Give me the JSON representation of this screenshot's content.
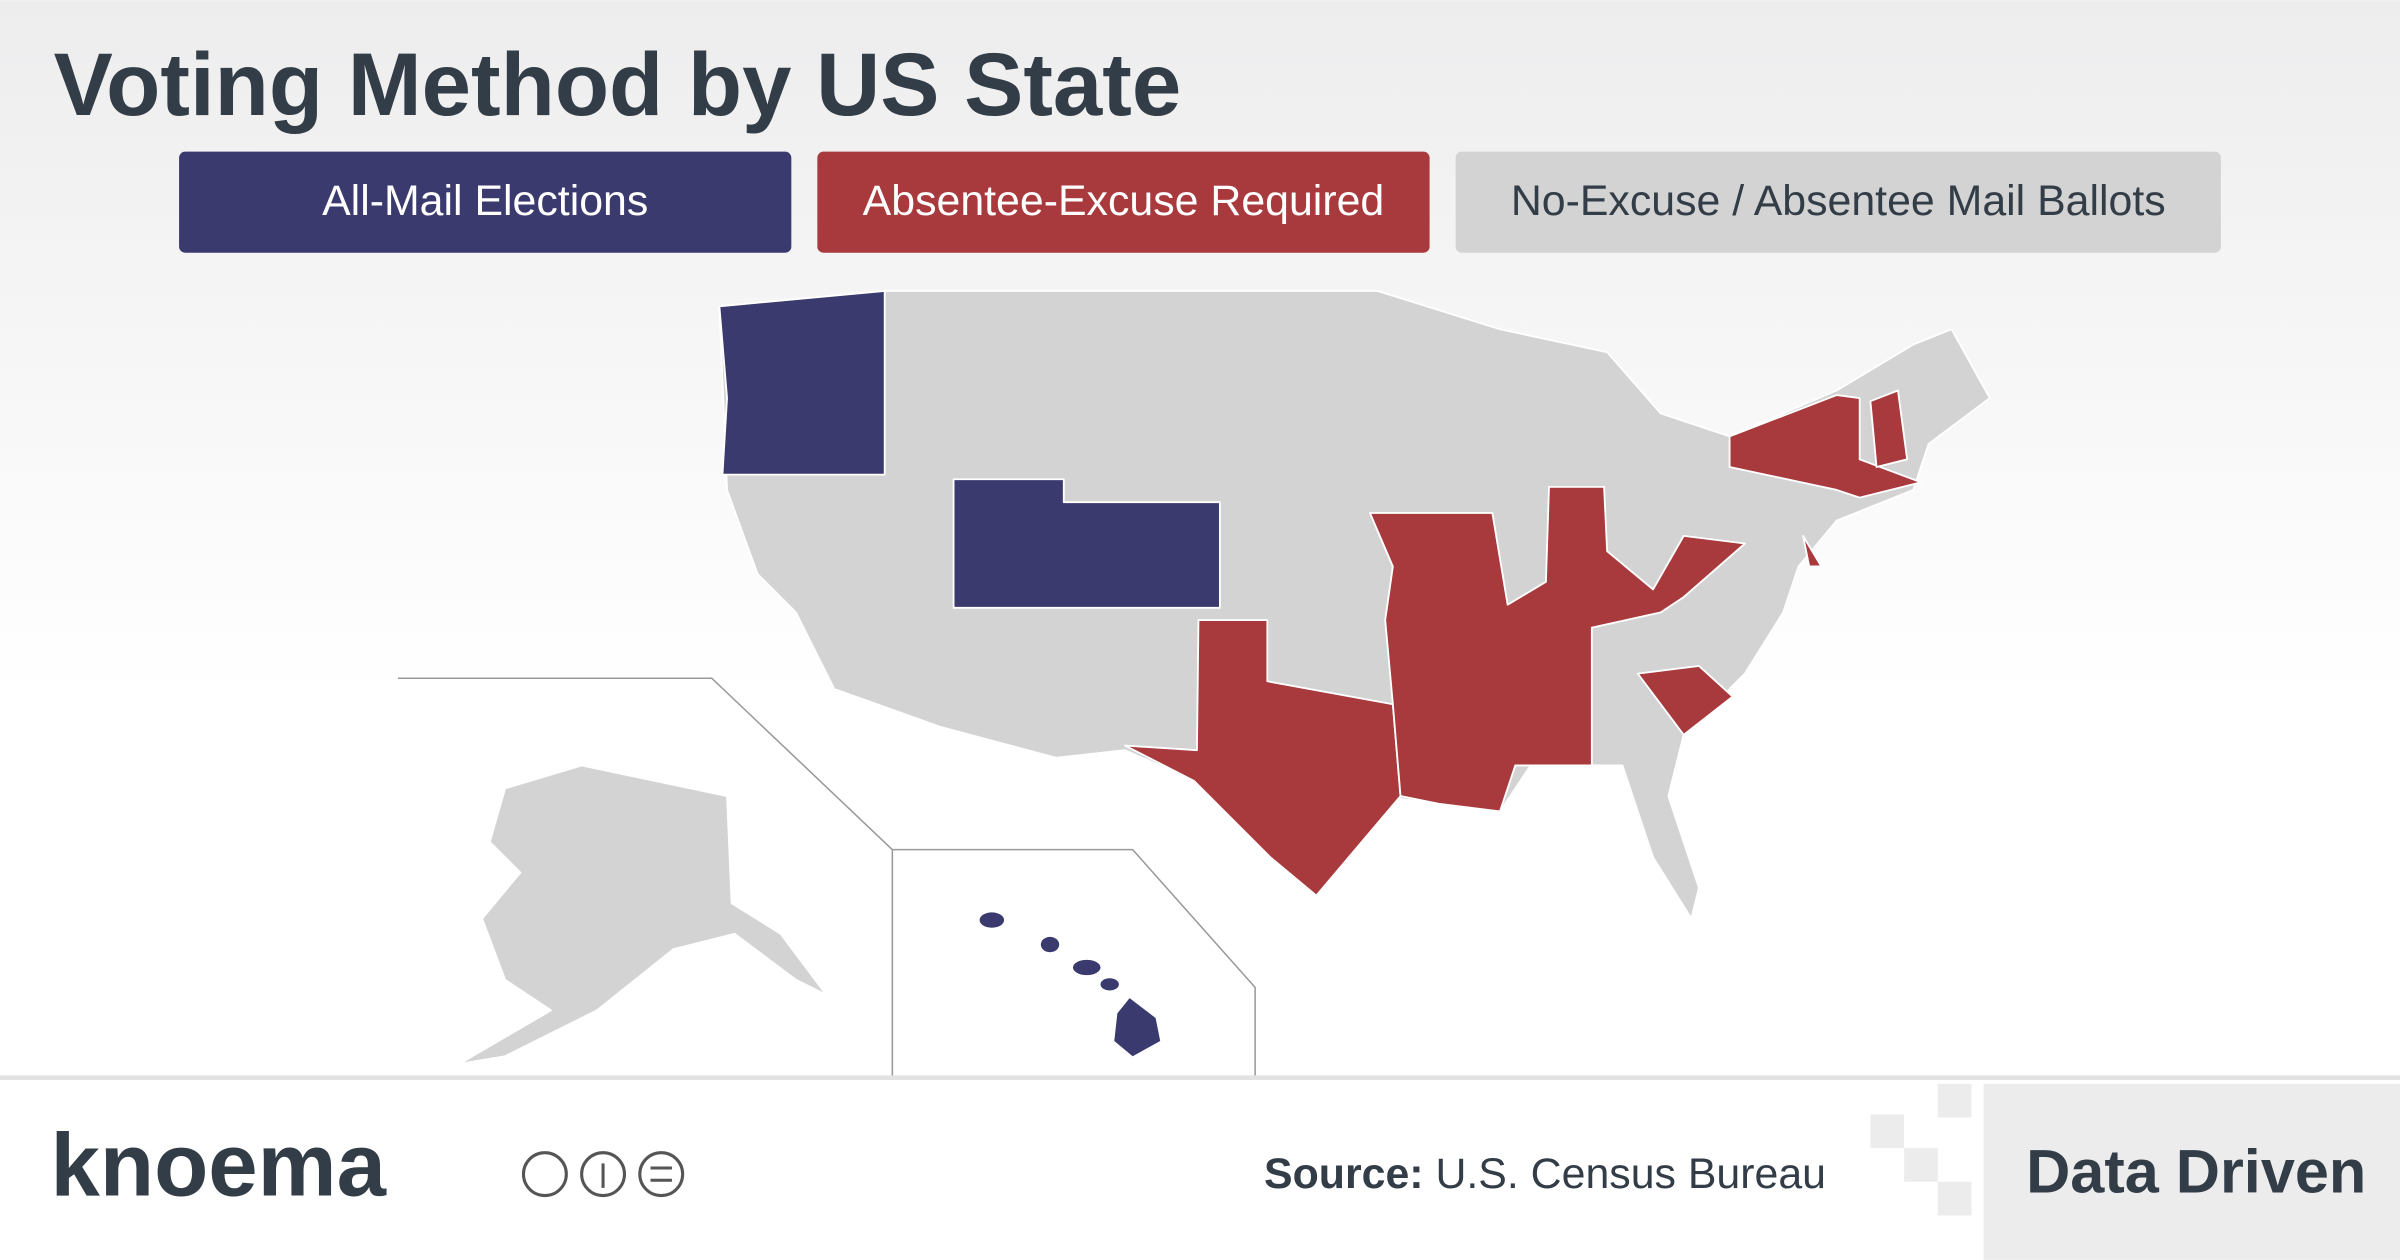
{
  "header": {
    "title": "Voting Method by US State"
  },
  "legend": [
    {
      "label": "All-Mail Elections",
      "color": "#3b3a6e"
    },
    {
      "label": "Absentee-Excuse Required",
      "color": "#a8393c"
    },
    {
      "label": "No-Excuse / Absentee Mail Ballots",
      "color": "#d3d3d3"
    }
  ],
  "footer": {
    "brand": "knoema",
    "source_label": "Source:",
    "source": "U.S. Census Bureau",
    "tagline": "Data Driven"
  }
}
